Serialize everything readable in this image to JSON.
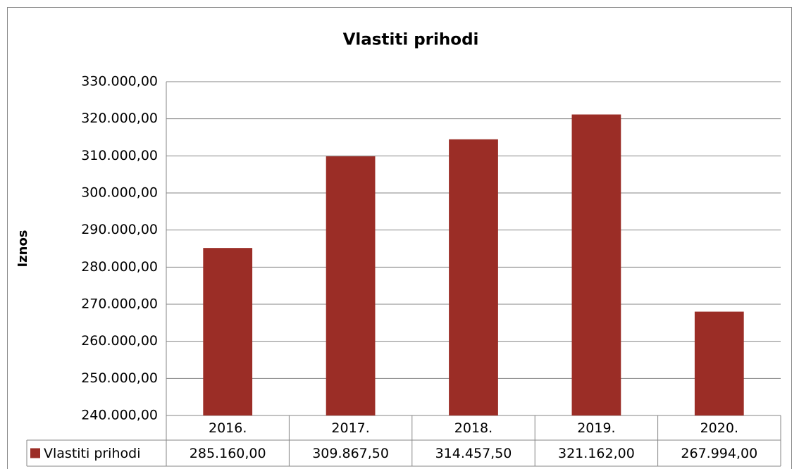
{
  "chart_data": {
    "type": "bar",
    "title": "Vlastiti prihodi",
    "y_label": "Iznos",
    "categories": [
      "2016.",
      "2017.",
      "2018.",
      "2019.",
      "2020."
    ],
    "series": [
      {
        "name": "Vlastiti prihodi",
        "color": "#9b2d26",
        "values": [
          285160,
          309867.5,
          314457.5,
          321162,
          267994
        ],
        "value_labels": [
          "285.160,00",
          "309.867,50",
          "314.457,50",
          "321.162,00",
          "267.994,00"
        ]
      }
    ],
    "ylim": [
      240000,
      330000
    ],
    "yticks": [
      {
        "value": 240000,
        "label": "240.000,00"
      },
      {
        "value": 250000,
        "label": "250.000,00"
      },
      {
        "value": 260000,
        "label": "260.000,00"
      },
      {
        "value": 270000,
        "label": "270.000,00"
      },
      {
        "value": 280000,
        "label": "280.000,00"
      },
      {
        "value": 290000,
        "label": "290.000,00"
      },
      {
        "value": 300000,
        "label": "300.000,00"
      },
      {
        "value": 310000,
        "label": "310.000,00"
      },
      {
        "value": 320000,
        "label": "320.000,00"
      },
      {
        "value": 330000,
        "label": "330.000,00"
      }
    ],
    "grid": true
  }
}
